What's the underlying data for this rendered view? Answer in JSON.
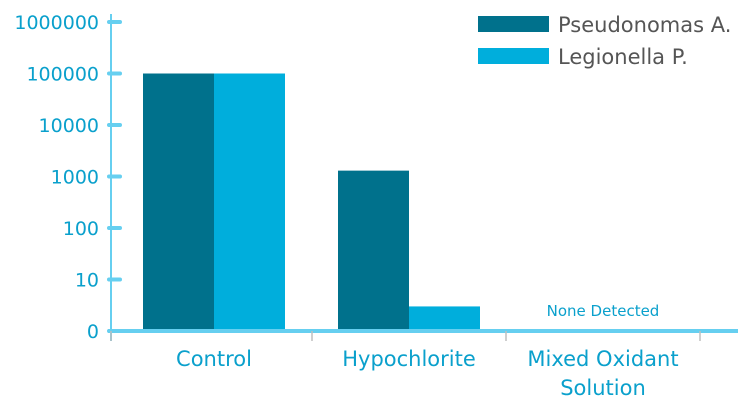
{
  "chart_data": {
    "type": "bar",
    "y_scale": "log",
    "categories": [
      "Control",
      "Hypochlorite",
      "Mixed Oxidant Solution"
    ],
    "category_lines": [
      [
        "Control"
      ],
      [
        "Hypochlorite"
      ],
      [
        "Mixed Oxidant",
        "Solution"
      ]
    ],
    "y_ticks": [
      "1000000",
      "100000",
      "10000",
      "1000",
      "100",
      "10",
      "0"
    ],
    "series": [
      {
        "name": "Pseudonomas A.",
        "values": [
          100000,
          1300,
          null
        ]
      },
      {
        "name": "Legionella P.",
        "values": [
          100000,
          3,
          null
        ]
      }
    ],
    "annotations": [
      {
        "category": "Mixed Oxidant Solution",
        "text": "None Detected"
      }
    ],
    "legend_position": "top-right",
    "grid": false,
    "colors": {
      "series_1": "#00718c",
      "series_2": "#00aedc",
      "axis": "#66cff0",
      "text": "#0aa0cc",
      "legend_text": "#555555"
    }
  }
}
